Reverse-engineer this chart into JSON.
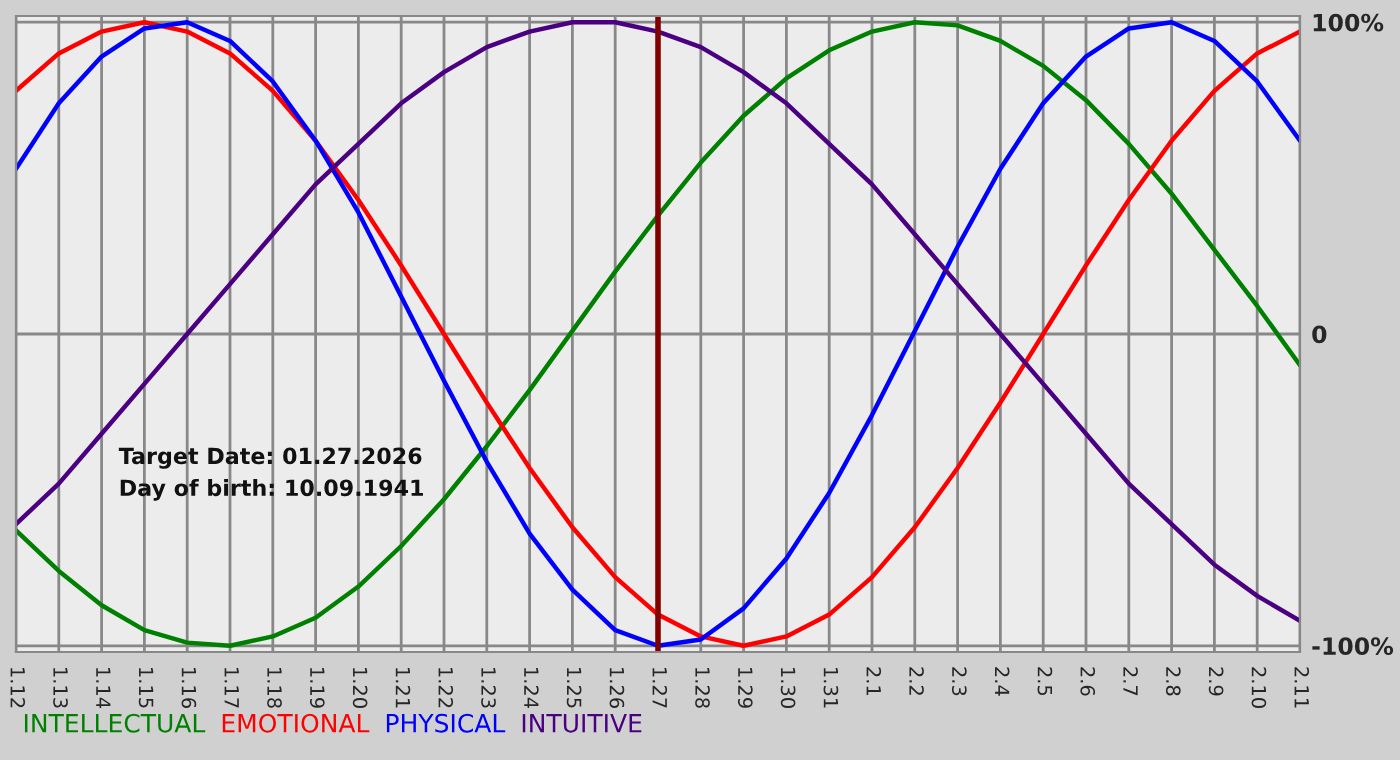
{
  "chart_data": {
    "type": "line",
    "categories": [
      "1.12",
      "1.13",
      "1.14",
      "1.15",
      "1.16",
      "1.17",
      "1.18",
      "1.19",
      "1.20",
      "1.21",
      "1.22",
      "1.23",
      "1.24",
      "1.25",
      "1.26",
      "1.27",
      "1.28",
      "1.29",
      "1.30",
      "1.31",
      "2.1",
      "2.2",
      "2.3",
      "2.4",
      "2.5",
      "2.6",
      "2.7",
      "2.8",
      "2.9",
      "2.10",
      "2.11"
    ],
    "series": [
      {
        "name": "INTELLECTUAL",
        "color": "#008000",
        "values": [
          -63,
          -76,
          -87,
          -95,
          -99,
          -100,
          -97,
          -91,
          -81,
          -68,
          -53,
          -36,
          -18,
          1,
          20,
          38,
          55,
          70,
          82,
          91,
          97,
          100,
          99,
          94,
          86,
          75,
          61,
          45,
          27,
          9,
          -10
        ]
      },
      {
        "name": "EMOTIONAL",
        "color": "#ff0000",
        "values": [
          78,
          90,
          97,
          100,
          97,
          90,
          78,
          62,
          43,
          22,
          0,
          -22,
          -43,
          -62,
          -78,
          -90,
          -97,
          -100,
          -97,
          -90,
          -78,
          -62,
          -43,
          -22,
          0,
          22,
          43,
          62,
          78,
          90,
          97
        ]
      },
      {
        "name": "PHYSICAL",
        "color": "#0000ff",
        "values": [
          53,
          74,
          89,
          98,
          100,
          94,
          81,
          62,
          39,
          12,
          -15,
          -41,
          -64,
          -82,
          -95,
          -100,
          -98,
          -88,
          -72,
          -51,
          -26,
          1,
          28,
          53,
          74,
          89,
          98,
          100,
          94,
          81,
          62
        ]
      },
      {
        "name": "INTUITIVE",
        "color": "#4b0082",
        "values": [
          -61,
          -48,
          -32,
          -16,
          0,
          16,
          32,
          48,
          61,
          74,
          84,
          92,
          97,
          100,
          100,
          97,
          92,
          84,
          74,
          61,
          48,
          32,
          16,
          0,
          -16,
          -32,
          -48,
          -61,
          -74,
          -84,
          -92
        ]
      }
    ],
    "ylim": [
      -102,
      102
    ],
    "yticks": [
      {
        "value": -100,
        "label": "-100%"
      },
      0,
      {
        "value": 100,
        "label": "100%"
      }
    ],
    "grid": true,
    "legend": "bottom",
    "ref_lines": [
      {
        "axis": "x",
        "value": "1.27",
        "color": "#800000"
      }
    ],
    "annotations": [
      "Target Date: 01.27.2026",
      "Day of birth: 10.09.1941"
    ]
  }
}
